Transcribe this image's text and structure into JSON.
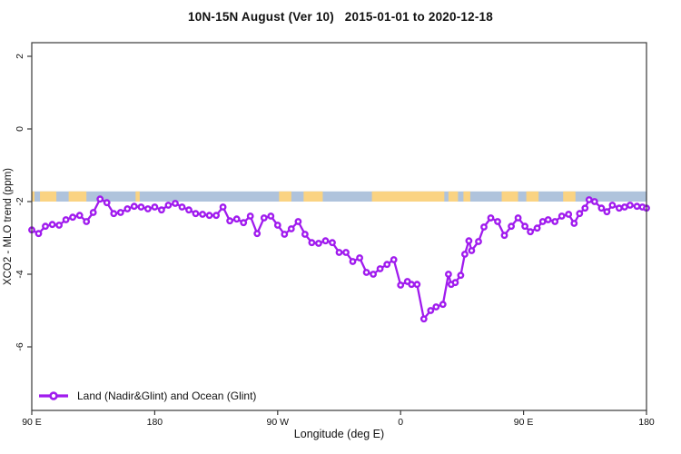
{
  "page": {
    "title": "10N-15N August (Ver 10)   2015-01-01 to 2020-12-18"
  },
  "chart_data": {
    "type": "line",
    "title": "10N-15N August (Ver 10)   2015-01-01 to 2020-12-18",
    "xlabel": "Longitude (deg E)",
    "ylabel": "XCO2 - MLO trend (ppm)",
    "xlim": [
      90,
      540
    ],
    "ylim": [
      -7.75,
      2.375
    ],
    "grid": false,
    "x_ticks": {
      "positions": [
        90,
        180,
        270,
        360,
        450,
        540
      ],
      "labels": [
        "90 E",
        "180",
        "90 W",
        "0",
        "90 E",
        "180"
      ]
    },
    "y_ticks": {
      "positions": [
        2,
        0,
        -2,
        -4,
        -6
      ],
      "labels": [
        "2",
        "0",
        "-2",
        "-4",
        "-6"
      ]
    },
    "legend": {
      "position": "bottom-left",
      "label": "Land (Nadir&Glint) and Ocean (Glint)"
    },
    "band": {
      "y_top": -1.72,
      "y_bottom": -2.0,
      "ocean_color": "#AFC3DC",
      "land_color": "#FAD382",
      "land_patches_deg": [
        [
          90,
          92
        ],
        [
          96,
          108
        ],
        [
          117,
          130
        ],
        [
          166,
          169
        ],
        [
          271,
          280
        ],
        [
          289,
          303
        ],
        [
          339,
          392
        ],
        [
          395,
          402
        ],
        [
          406,
          411
        ],
        [
          434,
          446
        ],
        [
          452,
          461
        ],
        [
          479,
          488
        ]
      ]
    },
    "series": [
      {
        "name": "Land (Nadir&Glint) and Ocean (Glint)",
        "color": "#A01BEE",
        "marker": "open-circle",
        "marker_fill": "#FFFFFF",
        "x": [
          90,
          95,
          100,
          105,
          110,
          115,
          120,
          125,
          130,
          135,
          140,
          145,
          150,
          155,
          160,
          165,
          170,
          175,
          180,
          185,
          190,
          195,
          200,
          205,
          210,
          215,
          220,
          225,
          230,
          235,
          240,
          245,
          250,
          255,
          260,
          265,
          270,
          275,
          280,
          285,
          290,
          295,
          300,
          305,
          310,
          315,
          320,
          325,
          330,
          335,
          340,
          345,
          350,
          355,
          360,
          365,
          368,
          372,
          377,
          382,
          386,
          391,
          395,
          397,
          400,
          404,
          407,
          410,
          412,
          417,
          421,
          426,
          431,
          436,
          441,
          446,
          451,
          455,
          460,
          464,
          468,
          473,
          478,
          483,
          487,
          491,
          495,
          498,
          502,
          507,
          511,
          515,
          520,
          524,
          528,
          533,
          537,
          540
        ],
        "y": [
          -2.78,
          -2.88,
          -2.68,
          -2.63,
          -2.65,
          -2.5,
          -2.43,
          -2.38,
          -2.55,
          -2.3,
          -1.93,
          -2.03,
          -2.33,
          -2.3,
          -2.2,
          -2.13,
          -2.15,
          -2.2,
          -2.15,
          -2.23,
          -2.1,
          -2.05,
          -2.15,
          -2.23,
          -2.33,
          -2.35,
          -2.38,
          -2.38,
          -2.15,
          -2.53,
          -2.48,
          -2.58,
          -2.4,
          -2.88,
          -2.45,
          -2.4,
          -2.65,
          -2.9,
          -2.75,
          -2.55,
          -2.9,
          -3.13,
          -3.15,
          -3.08,
          -3.13,
          -3.4,
          -3.4,
          -3.65,
          -3.55,
          -3.95,
          -4.0,
          -3.85,
          -3.73,
          -3.6,
          -4.3,
          -4.2,
          -4.28,
          -4.28,
          -5.23,
          -5.0,
          -4.9,
          -4.83,
          -4.0,
          -4.28,
          -4.23,
          -4.03,
          -3.45,
          -3.08,
          -3.35,
          -3.1,
          -2.7,
          -2.45,
          -2.55,
          -2.93,
          -2.68,
          -2.45,
          -2.68,
          -2.83,
          -2.73,
          -2.55,
          -2.5,
          -2.55,
          -2.4,
          -2.35,
          -2.6,
          -2.33,
          -2.18,
          -1.95,
          -2.0,
          -2.18,
          -2.28,
          -2.1,
          -2.18,
          -2.15,
          -2.1,
          -2.13,
          -2.15,
          -2.18
        ]
      }
    ]
  }
}
